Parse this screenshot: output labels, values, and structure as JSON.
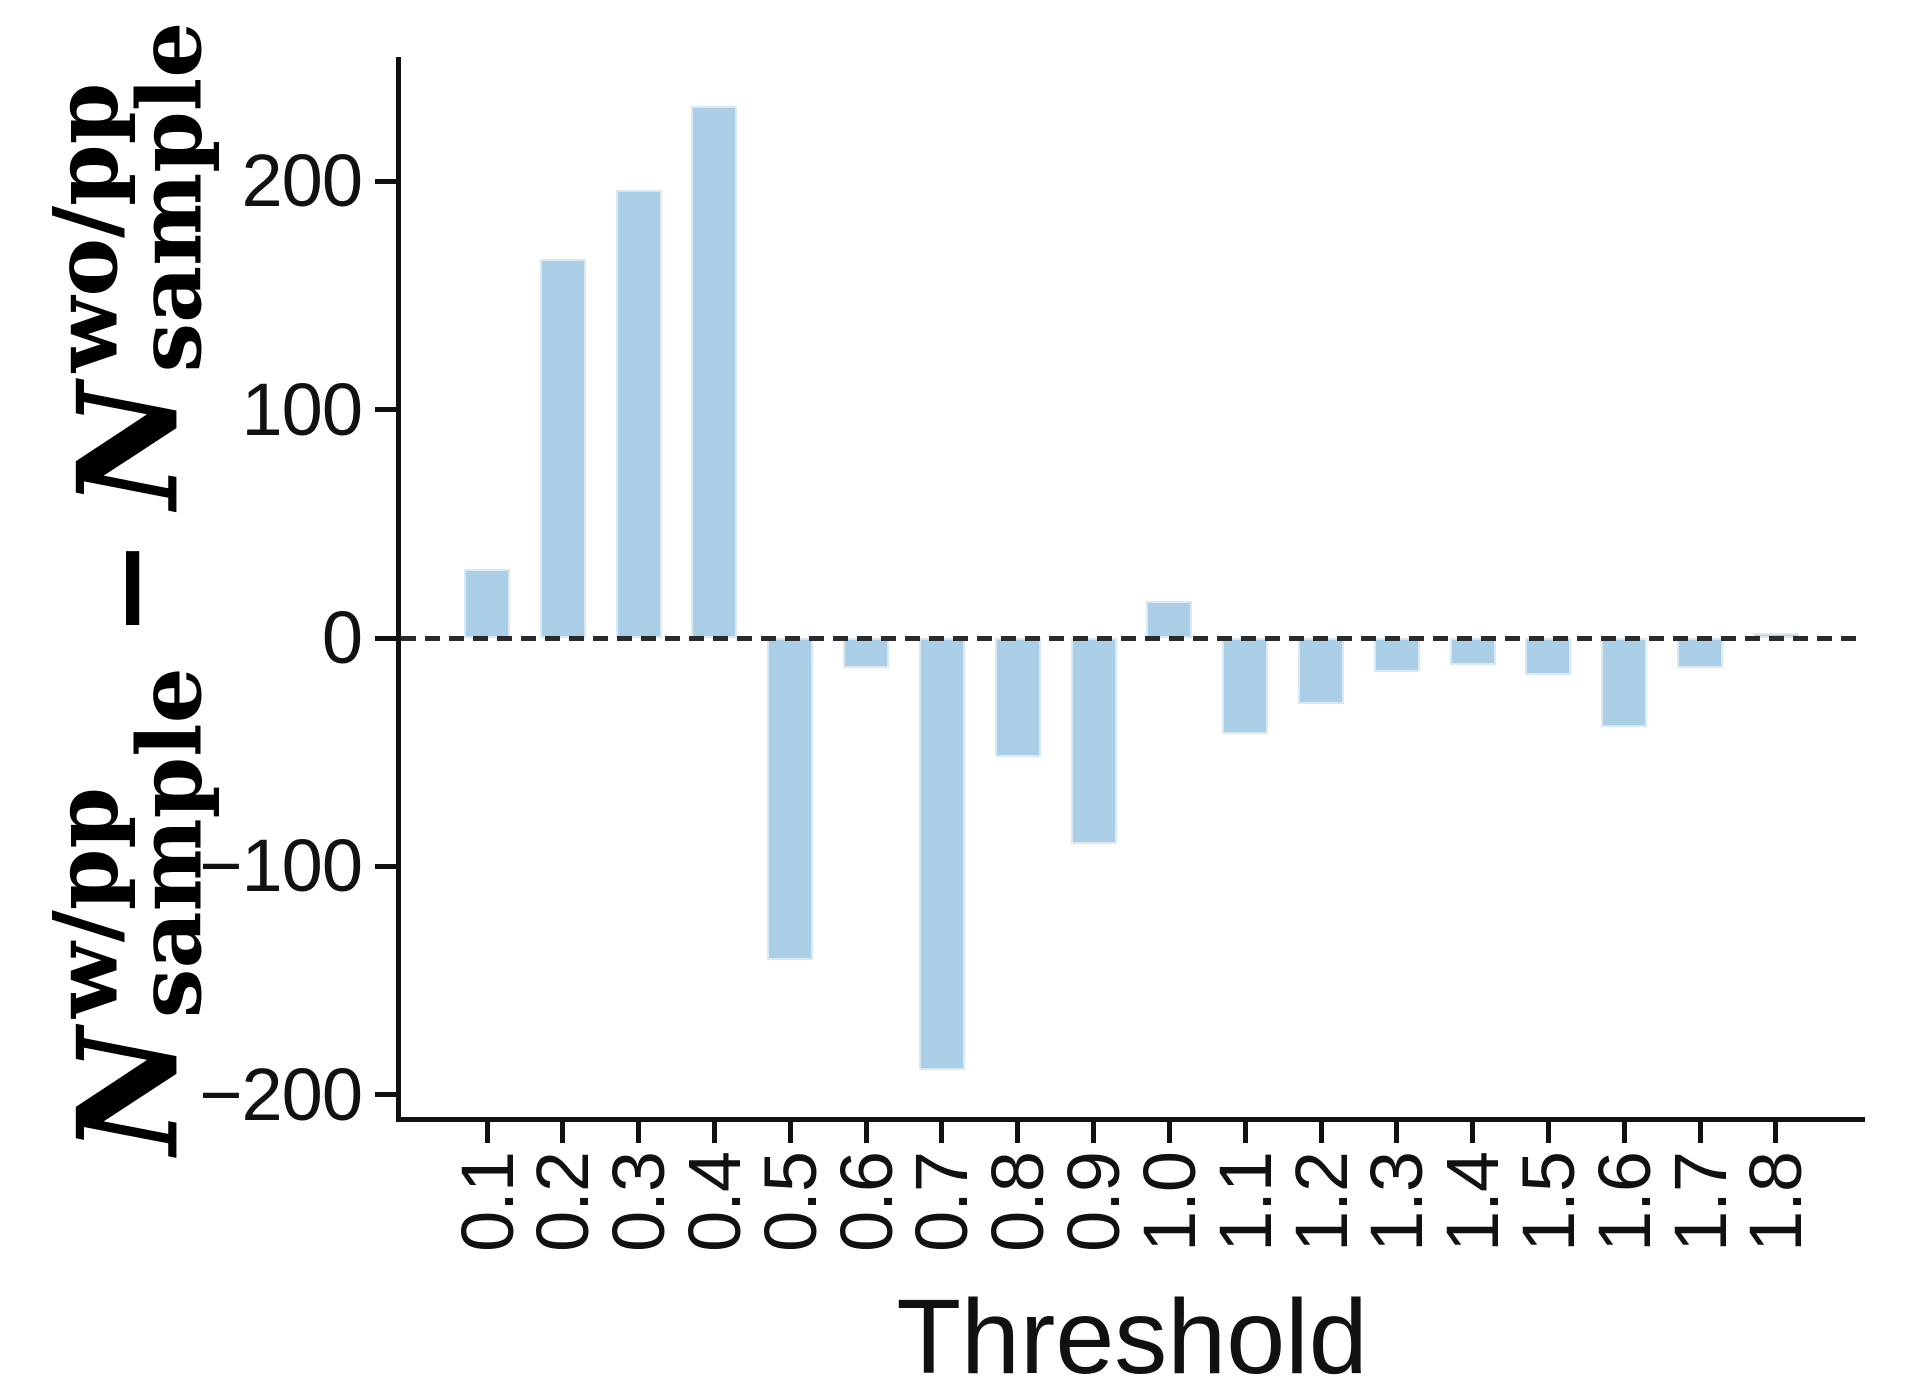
{
  "xlabel": "Threshold",
  "ylabel": {
    "n1": "N",
    "sup1": "w/pp",
    "sub1": "sample",
    "minus": "−",
    "n2": "N",
    "sup2": "wo/pp",
    "sub2": "sample"
  },
  "chart_data": {
    "type": "bar",
    "title": "",
    "xlabel": "Threshold",
    "ylabel": "N^{w/pp}_{sample} − N^{wo/pp}_{sample}",
    "categories": [
      "0.1",
      "0.2",
      "0.3",
      "0.4",
      "0.5",
      "0.6",
      "0.7",
      "0.8",
      "0.9",
      "1.0",
      "1.1",
      "1.2",
      "1.3",
      "1.4",
      "1.5",
      "1.6",
      "1.7",
      "1.8"
    ],
    "values": [
      30,
      166,
      196,
      233,
      -141,
      -13,
      -189,
      -52,
      -90,
      16,
      -42,
      -29,
      -15,
      -12,
      -16,
      -39,
      -13,
      2
    ],
    "yticks": [
      200,
      100,
      0,
      -100,
      -200
    ],
    "ytick_labels": [
      "200",
      "100",
      "0",
      "−100",
      "−200"
    ],
    "ylim": [
      -211,
      255
    ],
    "bar_color": "#a9cee5",
    "zero_line_style": "dashed",
    "zero_line_color": "#2b2b2b",
    "grid": false,
    "legend": false
  }
}
